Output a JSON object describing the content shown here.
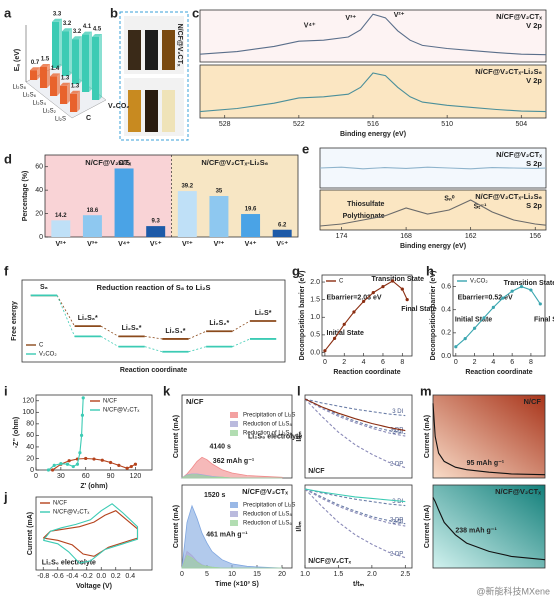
{
  "panel_letters": [
    "a",
    "b",
    "c",
    "d",
    "e",
    "f",
    "g",
    "h",
    "i",
    "j",
    "k",
    "l",
    "m"
  ],
  "photo": {
    "label": "N/CF@V₂CTₓ"
  },
  "watermark": "@新能科技MXene",
  "chart_data": [
    {
      "type": "bar3d",
      "ylabel": "Eₐ (eV)",
      "categories": [
        "Li₂S₈",
        "Li₂S₆",
        "Li₂S₄",
        "Li₂S₂",
        "Li₂S"
      ],
      "ylim": [
        0,
        5
      ],
      "series": [
        {
          "name": "C",
          "color": "#e8622c",
          "values": [
            0.7,
            1.5,
            1.4,
            1.3,
            1.3
          ]
        },
        {
          "name": "V₂CO₂",
          "color": "#3ccbb4",
          "values": [
            3.3,
            3.2,
            3.2,
            4.1,
            4.5
          ]
        }
      ]
    },
    {
      "type": "bar",
      "ylabel": "Percentage (%)",
      "groups": [
        "N/CF@V₂CTₓ",
        "N/CF@V₂CTₓ-Li₂S₆"
      ],
      "group_colors": [
        "#f9d3d6",
        "#f7e6c4"
      ],
      "categories": [
        "V²⁺",
        "V³⁺",
        "V⁴⁺",
        "V⁵⁺",
        "V²⁺",
        "V³⁺",
        "V⁴⁺",
        "V⁵⁺"
      ],
      "values": [
        14.2,
        18.6,
        58.5,
        9.3,
        39.2,
        35,
        19.6,
        6.2
      ],
      "colors": [
        "#bfe0f7",
        "#8ec8f0",
        "#4aa3e6",
        "#1d5aa8",
        "#bfe0f7",
        "#8ec8f0",
        "#4aa3e6",
        "#1d5aa8"
      ],
      "ylim": [
        0,
        70
      ],
      "yticks": [
        0,
        20,
        40,
        60
      ]
    },
    {
      "type": "line",
      "title": "N/CF@V₂CTₓ",
      "subtitle": "V 2p",
      "background": "#fdf3f3",
      "annotations": [
        "V⁴⁺",
        "V³⁺",
        "V²⁺"
      ],
      "xlim": [
        530,
        502
      ],
      "ylim": [
        0,
        1
      ],
      "x": [
        530,
        527,
        524,
        522,
        520,
        518,
        517,
        516,
        515,
        514,
        513,
        512,
        510,
        508,
        506,
        504,
        502
      ],
      "series": [
        {
          "color": "#5a6e8a",
          "values": [
            0.15,
            0.2,
            0.3,
            0.4,
            0.42,
            0.48,
            0.62,
            0.92,
            0.85,
            0.6,
            0.42,
            0.32,
            0.26,
            0.22,
            0.18,
            0.15,
            0.14
          ]
        }
      ]
    },
    {
      "type": "line",
      "title": "N/CF@V₂CTₓ-Li₂S₆",
      "subtitle": "V 2p",
      "background": "#fbe6c2",
      "xlabel": "Binding energy (eV)",
      "xlim": [
        530,
        502
      ],
      "xticks": [
        528,
        522,
        516,
        510,
        504
      ],
      "ylim": [
        0,
        1
      ],
      "x": [
        530,
        527,
        524,
        522,
        520,
        518,
        517,
        516,
        515,
        514,
        513,
        512,
        510,
        508,
        506,
        504,
        502
      ],
      "series": [
        {
          "color": "#4b8f9a",
          "values": [
            0.12,
            0.18,
            0.28,
            0.38,
            0.4,
            0.45,
            0.58,
            0.85,
            0.8,
            0.58,
            0.4,
            0.3,
            0.24,
            0.2,
            0.16,
            0.13,
            0.12
          ]
        }
      ]
    },
    {
      "type": "line",
      "title": "N/CF@V₂CTₓ",
      "subtitle": "S 2p",
      "background": "#f3f8fd",
      "xlim": [
        176,
        155
      ],
      "ylim": [
        0,
        1
      ],
      "x": [
        176,
        174,
        172,
        170,
        168,
        166,
        164,
        162,
        160,
        158,
        156,
        155
      ],
      "series": [
        {
          "color": "#8fb4cc",
          "values": [
            0.5,
            0.52,
            0.48,
            0.51,
            0.49,
            0.52,
            0.5,
            0.48,
            0.51,
            0.5,
            0.49,
            0.5
          ]
        }
      ]
    },
    {
      "type": "line",
      "title": "N/CF@V₂CTₓ-Li₂S₆",
      "subtitle": "S 2p",
      "background": "#fbe6c2",
      "annotations": [
        "Thiosulfate",
        "Polythionate",
        "Sₙ⁰",
        "Sₜ⁻¹"
      ],
      "xlabel": "Binding energy (eV)",
      "xlim": [
        176,
        155
      ],
      "xticks": [
        174,
        168,
        162,
        156
      ],
      "ylim": [
        0,
        1
      ],
      "x": [
        176,
        174,
        172,
        170,
        168,
        166,
        164,
        162,
        160,
        158,
        156,
        155
      ],
      "series": [
        {
          "color": "#6a6a6a",
          "values": [
            0.1,
            0.15,
            0.25,
            0.35,
            0.55,
            0.4,
            0.5,
            0.75,
            0.45,
            0.25,
            0.15,
            0.12
          ]
        }
      ]
    },
    {
      "type": "energy",
      "title": "Reduction reaction of S₈ to Li₂S",
      "ylabel": "Free energy",
      "xlabel": "Reaction coordinate",
      "legend": "lower left",
      "categories": [
        "S₈",
        "Li₂S₈*",
        "Li₂S₆*",
        "Li₂S₄*",
        "Li₂S₂*",
        "Li₂S*"
      ],
      "ylim": [
        -2.6,
        0.6
      ],
      "series": [
        {
          "name": "C",
          "color": "#8b4a1c",
          "values": [
            0,
            -1.2,
            -1.6,
            -1.7,
            -1.4,
            -1.0
          ]
        },
        {
          "name": "V₂CO₂",
          "color": "#3ccbb4",
          "values": [
            0,
            -1.6,
            -2.0,
            -2.2,
            -2.0,
            -1.7
          ]
        }
      ]
    },
    {
      "type": "line",
      "xlabel": "Reaction coordinate",
      "ylabel": "Decomposition barrier (eV)",
      "legend": "upper left",
      "markers": true,
      "annotations": [
        "Transition State",
        "Ebarrier=2.03 eV",
        "Initial State",
        "Final State"
      ],
      "xlim": [
        -0.3,
        9
      ],
      "xticks": [
        0,
        2,
        4,
        6,
        8
      ],
      "ylim": [
        -0.1,
        2.2
      ],
      "yticks": [
        {
          "value": 0,
          "label": "0.0"
        },
        {
          "value": 0.5,
          "label": "0.5"
        },
        {
          "value": 1,
          "label": "1.0"
        },
        {
          "value": 1.5,
          "label": "1.5"
        },
        {
          "value": 2,
          "label": "2.0"
        }
      ],
      "x": [
        0,
        1,
        2,
        3,
        4,
        5,
        6,
        7,
        8,
        8.5
      ],
      "series": [
        {
          "name": "C",
          "color": "#8b2e12",
          "values": [
            0.05,
            0.4,
            0.8,
            1.15,
            1.45,
            1.7,
            1.87,
            2.03,
            1.8,
            1.5
          ]
        }
      ]
    },
    {
      "type": "line",
      "xlabel": "Reaction coordinate",
      "ylabel": "Decomposition barrier (eV)",
      "legend": "upper left",
      "markers": true,
      "annotations": [
        "Transition State",
        "Ebarrier=0.52 eV",
        "Initial State",
        "Final State"
      ],
      "xlim": [
        -0.3,
        9.5
      ],
      "xticks": [
        0,
        2,
        4,
        6,
        8
      ],
      "ylim": [
        0,
        0.7
      ],
      "yticks": [
        {
          "value": 0,
          "label": "0.0"
        },
        0.2,
        0.4,
        0.6
      ],
      "x": [
        0,
        1,
        2,
        3,
        4,
        5,
        6,
        7,
        8,
        9
      ],
      "series": [
        {
          "name": "V₂CO₂",
          "color": "#3aa6b0",
          "values": [
            0.08,
            0.15,
            0.24,
            0.33,
            0.42,
            0.5,
            0.56,
            0.6,
            0.57,
            0.45
          ]
        }
      ]
    },
    {
      "type": "line",
      "xlabel": "Z' (ohm)",
      "ylabel": "-Z'' (ohm)",
      "legend": "upper right",
      "markers": true,
      "xlim": [
        0,
        140
      ],
      "xticks": [
        0,
        30,
        60,
        90,
        120
      ],
      "ylim": [
        0,
        130
      ],
      "yticks": [
        0,
        20,
        40,
        60,
        80,
        100,
        120
      ],
      "series": [
        {
          "name": "N/CF",
          "color": "#b5431d",
          "x": [
            20,
            30,
            40,
            50,
            60,
            70,
            80,
            90,
            100,
            110,
            115,
            120
          ],
          "values": [
            0,
            10,
            16,
            19,
            20,
            19,
            17,
            13,
            8,
            3,
            6,
            10
          ]
        },
        {
          "name": "N/CF@V₂CTₓ",
          "color": "#3ccbb4",
          "x": [
            15,
            22,
            30,
            38,
            45,
            50,
            53,
            55,
            56,
            57
          ],
          "values": [
            0,
            8,
            11,
            10,
            6,
            10,
            30,
            60,
            95,
            125
          ]
        }
      ]
    },
    {
      "type": "line",
      "xlabel": "Voltage (V)",
      "ylabel": "Current (mA)",
      "legend": "upper left",
      "annotations": [
        "Li₂S₆ electrolyte"
      ],
      "xlim": [
        -0.9,
        0.7
      ],
      "xticks": [
        -0.8,
        -0.6,
        -0.4,
        -0.2,
        {
          "value": 0,
          "label": "0.0"
        },
        0.2,
        0.4
      ],
      "ylim": [
        -1.6,
        1.6
      ],
      "series": [
        {
          "name": "N/CF",
          "color": "#b5431d",
          "x": [
            -0.8,
            -0.6,
            -0.4,
            -0.25,
            -0.1,
            0.1,
            0.3,
            0.5,
            0.5,
            0.35,
            0.2,
            0.05,
            -0.1,
            -0.3,
            -0.5,
            -0.7,
            -0.8
          ],
          "values": [
            -0.2,
            -0.3,
            -0.5,
            -0.9,
            -1.0,
            -0.6,
            -0.4,
            -0.2,
            0.2,
            0.6,
            1.0,
            0.8,
            0.5,
            0.3,
            0.2,
            0.1,
            -0.2
          ]
        },
        {
          "name": "N/CF@V₂CTₓ",
          "color": "#3ccbb4",
          "x": [
            -0.8,
            -0.6,
            -0.45,
            -0.3,
            -0.15,
            0.05,
            0.3,
            0.5,
            0.5,
            0.3,
            0.15,
            0.0,
            -0.15,
            -0.35,
            -0.55,
            -0.7,
            -0.8
          ],
          "values": [
            -0.3,
            -0.45,
            -0.8,
            -1.3,
            -1.2,
            -0.7,
            -0.45,
            -0.25,
            0.3,
            0.9,
            1.3,
            1.0,
            0.6,
            0.4,
            0.25,
            0.1,
            -0.3
          ]
        }
      ]
    },
    {
      "type": "area",
      "title": "N/CF",
      "ylabel": "Current (mA)",
      "legend": "upper right",
      "annotations": [
        "4140 s",
        "362 mAh g⁻¹",
        "Li₂S₈ electrolyte"
      ],
      "xlim": [
        0,
        22
      ],
      "ylim": [
        0,
        1
      ],
      "x": [
        0,
        1,
        2,
        3,
        4,
        5,
        6,
        8,
        10,
        13,
        16,
        20
      ],
      "series": [
        {
          "name": "Precipitation of Li₂S",
          "color": "#f08a8a",
          "values": [
            0,
            0.05,
            0.12,
            0.2,
            0.25,
            0.22,
            0.17,
            0.1,
            0.06,
            0.03,
            0.02,
            0.01
          ]
        },
        {
          "name": "Reduction of Li₂S₈",
          "color": "#a9a9d6",
          "values": [
            0,
            0.04,
            0.05,
            0.05,
            0.04,
            0.03,
            0.02,
            0.01,
            0,
            0,
            0,
            0
          ]
        },
        {
          "name": "Reduction of Li₂S₆",
          "color": "#9fd49f",
          "values": [
            0,
            0.03,
            0.04,
            0.04,
            0.03,
            0.02,
            0.01,
            0.01,
            0,
            0,
            0,
            0
          ]
        }
      ]
    },
    {
      "type": "area",
      "title": "N/CF@V₂CTₓ",
      "xlabel": "Time (×10³ S)",
      "ylabel": "Current (mA)",
      "legend": "upper right",
      "annotations": [
        "1520 s",
        "461 mAh g⁻¹"
      ],
      "xlim": [
        0,
        22
      ],
      "xticks": [
        0,
        5,
        10,
        15,
        20
      ],
      "ylim": [
        0,
        1
      ],
      "x": [
        0,
        1,
        2,
        3,
        4,
        5,
        6,
        8,
        10,
        13,
        16,
        20
      ],
      "series": [
        {
          "name": "Precipitation of Li₂S",
          "color": "#7fa6e0",
          "values": [
            0,
            0.55,
            0.75,
            0.6,
            0.42,
            0.3,
            0.2,
            0.1,
            0.05,
            0.02,
            0.01,
            0
          ]
        },
        {
          "name": "Reduction of Li₂S₈",
          "color": "#a9a9d6",
          "values": [
            0,
            0.2,
            0.15,
            0.08,
            0.04,
            0.02,
            0.01,
            0,
            0,
            0,
            0,
            0
          ]
        },
        {
          "name": "Reduction of Li₂S₆",
          "color": "#9fd49f",
          "values": [
            0,
            0.15,
            0.12,
            0.07,
            0.03,
            0.02,
            0.01,
            0,
            0,
            0,
            0,
            0
          ]
        }
      ]
    },
    {
      "type": "line",
      "ylabel": "I/Iₘ",
      "label_lines": true,
      "annotations": [
        "N/CF"
      ],
      "xlim": [
        1,
        2.6
      ],
      "ylim": [
        0,
        1.05
      ],
      "x": [
        1,
        1.25,
        1.5,
        1.75,
        2,
        2.25,
        2.5
      ],
      "series": [
        {
          "name": "3 DI",
          "color": "#6c7fa8",
          "dash": true,
          "values": [
            1,
            0.95,
            0.91,
            0.87,
            0.84,
            0.81,
            0.79
          ]
        },
        {
          "name": "3 DP",
          "color": "#6c7fa8",
          "dash": true,
          "values": [
            1,
            0.9,
            0.8,
            0.72,
            0.65,
            0.6,
            0.56
          ]
        },
        {
          "name": "2 DI",
          "color": "#8a8ab8",
          "dash": true,
          "values": [
            1,
            0.88,
            0.78,
            0.7,
            0.63,
            0.57,
            0.53
          ]
        },
        {
          "name": "2 DP",
          "color": "#8a8ab8",
          "dash": true,
          "values": [
            1,
            0.78,
            0.58,
            0.42,
            0.3,
            0.2,
            0.13
          ]
        },
        {
          "color": "#8b2e12",
          "values": [
            1,
            0.9,
            0.82,
            0.75,
            0.69,
            0.64,
            0.6
          ]
        }
      ]
    },
    {
      "type": "line",
      "ylabel": "I/Iₘ",
      "xlabel": "t/tₘ",
      "label_lines": true,
      "annotations": [
        "N/CF@V₂CTₓ"
      ],
      "xlim": [
        1,
        2.6
      ],
      "xticks": [
        {
          "value": 1,
          "label": "1.0"
        },
        1.5,
        {
          "value": 2,
          "label": "2.0"
        },
        2.5
      ],
      "ylim": [
        0,
        1.05
      ],
      "x": [
        1,
        1.25,
        1.5,
        1.75,
        2,
        2.25,
        2.5
      ],
      "series": [
        {
          "name": "3 DI",
          "color": "#6c7fa8",
          "dash": true,
          "values": [
            1,
            0.95,
            0.91,
            0.87,
            0.84,
            0.81,
            0.79
          ]
        },
        {
          "name": "3 DP",
          "color": "#6c7fa8",
          "dash": true,
          "values": [
            1,
            0.9,
            0.8,
            0.72,
            0.65,
            0.6,
            0.56
          ]
        },
        {
          "name": "2 DI",
          "color": "#8a8ab8",
          "dash": true,
          "values": [
            1,
            0.88,
            0.78,
            0.7,
            0.63,
            0.57,
            0.53
          ]
        },
        {
          "name": "2 DP",
          "color": "#8a8ab8",
          "dash": true,
          "values": [
            1,
            0.78,
            0.58,
            0.42,
            0.3,
            0.2,
            0.13
          ]
        },
        {
          "color": "#3ccbb4",
          "values": [
            1,
            0.96,
            0.93,
            0.9,
            0.88,
            0.86,
            0.84
          ]
        }
      ]
    },
    {
      "type": "heat",
      "title": "N/CF",
      "ylabel": "Current (mA)",
      "annotations": [
        "95 mAh g⁻¹"
      ],
      "gradient": [
        "#f9dcc8",
        "#a8341a"
      ],
      "xlim": [
        0,
        1
      ],
      "ylim": [
        0,
        1
      ],
      "x": [
        0,
        0.02,
        0.05,
        0.1,
        0.2,
        0.3,
        0.5,
        0.7,
        1
      ],
      "series": [
        {
          "color": "#111111",
          "values": [
            0.9,
            0.5,
            0.3,
            0.2,
            0.13,
            0.1,
            0.07,
            0.05,
            0.04
          ]
        }
      ]
    },
    {
      "type": "heat",
      "title": "N/CF@V₂CTₓ",
      "ylabel": "Current (mA)",
      "annotations": [
        "238 mAh g⁻¹"
      ],
      "gradient": [
        "#d2f2ef",
        "#127f7a"
      ],
      "xlim": [
        0,
        1
      ],
      "ylim": [
        0,
        1
      ],
      "x": [
        0,
        0.02,
        0.05,
        0.1,
        0.2,
        0.3,
        0.5,
        0.7,
        1
      ],
      "series": [
        {
          "color": "#111111",
          "values": [
            0.85,
            0.8,
            0.7,
            0.55,
            0.4,
            0.3,
            0.2,
            0.14,
            0.1
          ]
        }
      ]
    }
  ]
}
